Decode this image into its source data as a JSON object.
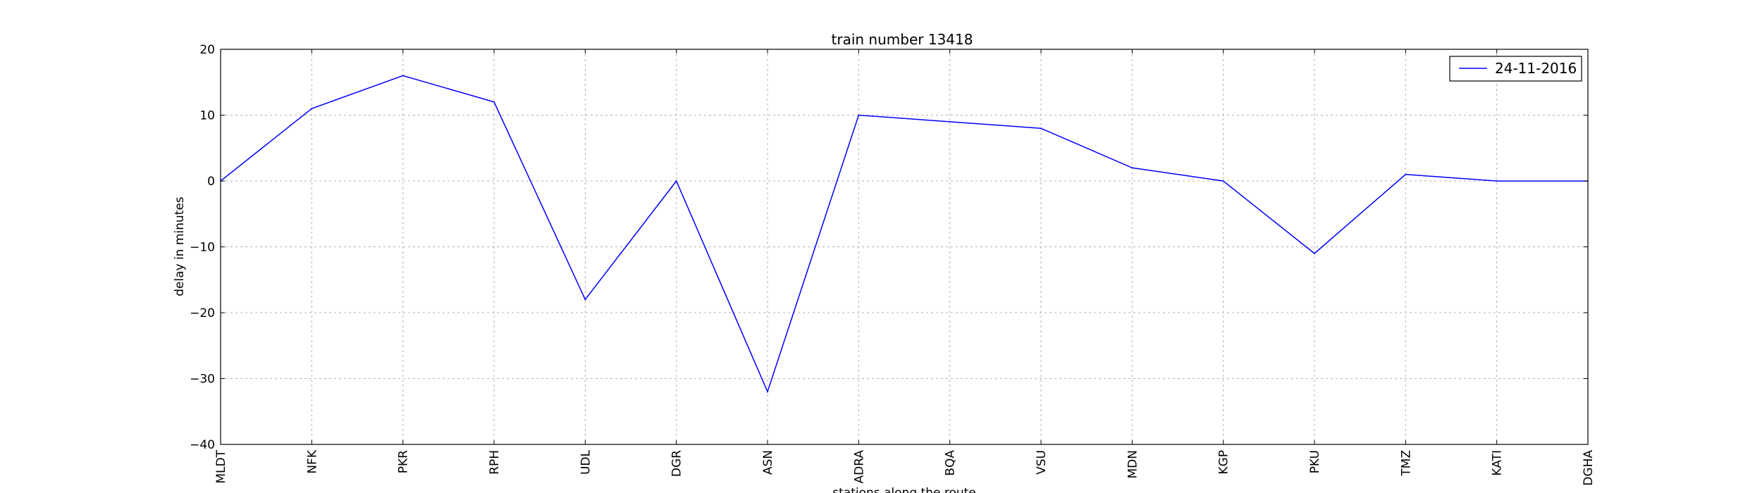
{
  "chart_data": {
    "type": "line",
    "title": "train number 13418",
    "xlabel": "stations along the route",
    "ylabel": "delay in minutes",
    "categories": [
      "MLDT",
      "NFK",
      "PKR",
      "RPH",
      "UDL",
      "DGR",
      "ASN",
      "ADRA",
      "BQA",
      "VSU",
      "MDN",
      "KGP",
      "PKU",
      "TMZ",
      "KATI",
      "DGHA"
    ],
    "ylim": [
      -40,
      20
    ],
    "yticks": [
      20,
      10,
      0,
      -10,
      -20,
      -30,
      -40
    ],
    "ytick_labels": [
      "20",
      "10",
      "0",
      "−10",
      "−20",
      "−30",
      "−40"
    ],
    "grid": true,
    "legend_position": "top-right",
    "series": [
      {
        "name": "24-11-2016",
        "color": "#0000ff",
        "values": [
          0,
          11,
          16,
          12,
          -18,
          0,
          -32,
          10,
          9,
          8,
          2,
          0,
          -11,
          1,
          0,
          0
        ]
      }
    ]
  }
}
